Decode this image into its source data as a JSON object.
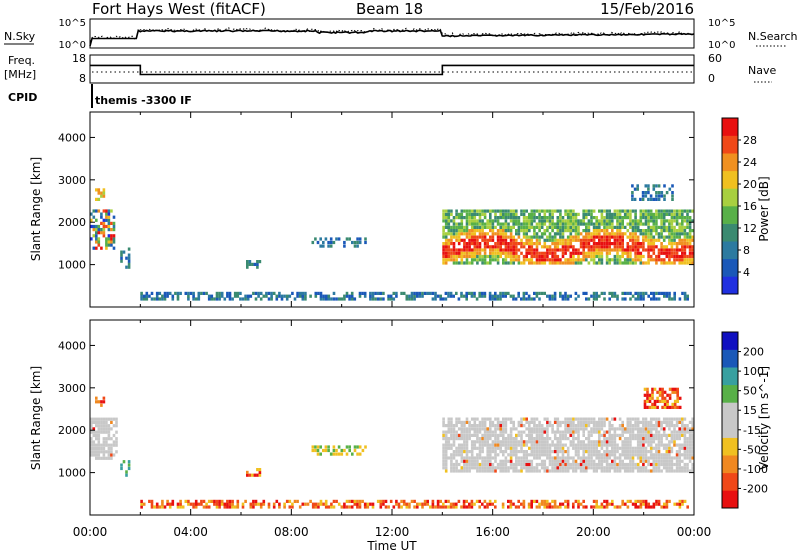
{
  "header": {
    "station": "Fort Hays West (fitACF)",
    "beam": "Beam 18",
    "date": "15/Feb/2016"
  },
  "top_panels": {
    "nsky_label": "N.Sky",
    "nsearch_label": "N.Search",
    "noise_ticks": [
      "10^5",
      "10^0"
    ],
    "freq_label": "Freq.",
    "freq_unit": "[MHz]",
    "freq_ticks": [
      "18",
      "8"
    ],
    "nave_label": "Nave",
    "nave_ticks": [
      "60",
      "0"
    ],
    "cpid_label": "CPID",
    "cpid_text": "themis -3300 IF",
    "freq_steps": [
      {
        "t_start": 0,
        "t_end": 2,
        "mhz": 14
      },
      {
        "t_start": 2,
        "t_end": 14,
        "mhz": 10.5
      },
      {
        "t_start": 14,
        "t_end": 24,
        "mhz": 14
      }
    ]
  },
  "colors": {
    "power_scale": [
      "#2030e0",
      "#1a58b8",
      "#2c7aa0",
      "#3a8a70",
      "#58b048",
      "#a8d040",
      "#f0c020",
      "#f09020",
      "#f04818",
      "#e81010"
    ],
    "velocity_scale": [
      "#e81010",
      "#f04818",
      "#f08820",
      "#f0c020",
      "#c8c8c8",
      "#c8c8c8",
      "#58b048",
      "#38a0a0",
      "#1a58b8",
      "#1010c0"
    ]
  },
  "chart_data": [
    {
      "type": "heatmap",
      "title": "",
      "ylabel": "Slant Range [km]",
      "xlabel": "",
      "ylim": [
        0,
        4600
      ],
      "xlim": [
        0,
        24
      ],
      "y_ticks": [
        "4000",
        "3000",
        "2000",
        "1000"
      ],
      "colorbar": {
        "label": "Power [dB]",
        "ticks": [
          "28",
          "24",
          "20",
          "16",
          "12",
          "8",
          "4"
        ]
      },
      "regions": [
        {
          "t0": 0.0,
          "t1": 1.0,
          "r0": 1350,
          "r1": 2300,
          "level": "mixed"
        },
        {
          "t0": 0.2,
          "t1": 0.6,
          "r0": 2500,
          "r1": 2800,
          "level": "mid"
        },
        {
          "t0": 1.2,
          "t1": 1.6,
          "r0": 900,
          "r1": 1400,
          "level": "low"
        },
        {
          "t0": 6.2,
          "t1": 6.8,
          "r0": 900,
          "r1": 1100,
          "level": "low"
        },
        {
          "t0": 8.8,
          "t1": 11.0,
          "r0": 1400,
          "r1": 1650,
          "level": "low"
        },
        {
          "t0": 14.0,
          "t1": 24.0,
          "r0": 1000,
          "r1": 2300,
          "level": "high"
        },
        {
          "t0": 21.5,
          "t1": 23.2,
          "r0": 2500,
          "r1": 2900,
          "level": "low"
        },
        {
          "t0": 2.0,
          "t1": 23.8,
          "r0": 150,
          "r1": 350,
          "level": "low"
        }
      ]
    },
    {
      "type": "heatmap",
      "title": "",
      "ylabel": "Slant Range [km]",
      "xlabel": "Time UT",
      "ylim": [
        0,
        4600
      ],
      "xlim": [
        0,
        24
      ],
      "y_ticks": [
        "4000",
        "3000",
        "2000",
        "1000"
      ],
      "x_ticks": [
        "00:00",
        "04:00",
        "08:00",
        "12:00",
        "16:00",
        "20:00",
        "00:00"
      ],
      "colorbar": {
        "label": "Velocity [m s^-1]",
        "ticks": [
          "200",
          "100",
          "50",
          "15",
          "-15",
          "-50",
          "-100",
          "-200"
        ]
      },
      "regions": [
        {
          "t0": 0.0,
          "t1": 1.1,
          "r0": 1300,
          "r1": 2300,
          "level": "ground"
        },
        {
          "t0": 0.2,
          "t1": 0.6,
          "r0": 2550,
          "r1": 2800,
          "level": "neg"
        },
        {
          "t0": 1.2,
          "t1": 1.6,
          "r0": 900,
          "r1": 1300,
          "level": "pos"
        },
        {
          "t0": 6.2,
          "t1": 6.8,
          "r0": 900,
          "r1": 1100,
          "level": "neg"
        },
        {
          "t0": 8.8,
          "t1": 11.0,
          "r0": 1400,
          "r1": 1650,
          "level": "mixed"
        },
        {
          "t0": 14.0,
          "t1": 24.0,
          "r0": 1000,
          "r1": 2300,
          "level": "ground"
        },
        {
          "t0": 22.0,
          "t1": 23.5,
          "r0": 2500,
          "r1": 3000,
          "level": "neg"
        },
        {
          "t0": 2.0,
          "t1": 23.8,
          "r0": 150,
          "r1": 350,
          "level": "neg"
        }
      ]
    }
  ]
}
